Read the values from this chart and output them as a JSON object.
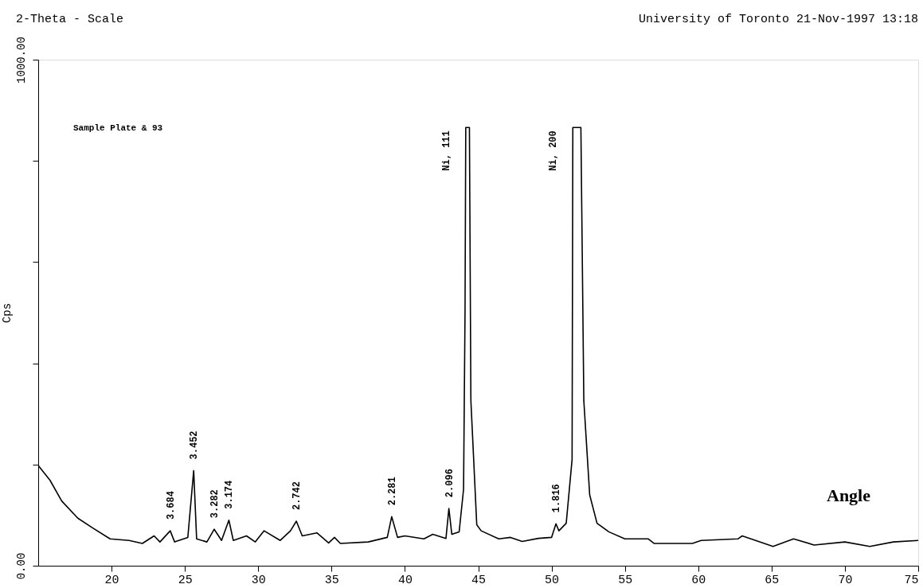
{
  "chart_data": {
    "type": "line",
    "title": "2-Theta - Scale",
    "subtitle": "University of Toronto 21-Nov-1997 13:18",
    "ylabel": "Cps",
    "x": [
      15.0,
      15.8,
      16.6,
      17.7,
      18.7,
      19.9,
      21.2,
      22.1,
      22.9,
      23.3,
      24.0,
      24.3,
      25.2,
      25.6,
      25.8,
      26.5,
      27.0,
      27.5,
      28.0,
      28.3,
      29.2,
      29.8,
      30.4,
      31.5,
      32.2,
      32.6,
      33.0,
      34.0,
      34.8,
      35.2,
      35.6,
      37.5,
      38.8,
      39.1,
      39.5,
      40.0,
      41.3,
      41.9,
      42.8,
      43.0,
      43.2,
      43.7,
      44.0,
      44.1,
      44.15,
      44.4,
      44.5,
      44.9,
      45.2,
      46.4,
      47.2,
      48.0,
      49.1,
      50.0,
      50.3,
      50.5,
      51.0,
      51.4,
      51.45,
      52.0,
      52.2,
      52.6,
      53.1,
      53.9,
      55.0,
      56.6,
      57.0,
      59.6,
      60.2,
      62.7,
      63.0,
      65.1,
      66.5,
      67.9,
      70.0,
      71.7,
      73.3,
      75.0
    ],
    "series": [
      {
        "color": "#000000",
        "values": [
          198,
          169,
          128,
          94,
          75,
          53,
          50,
          44,
          59,
          47,
          69,
          47,
          56,
          188,
          53,
          47,
          72,
          50,
          90,
          50,
          59,
          47,
          69,
          50,
          69,
          88,
          59,
          65,
          45,
          56,
          44,
          47,
          56,
          97,
          56,
          59,
          53,
          62,
          54,
          113,
          62,
          67,
          151,
          500,
          866,
          866,
          326,
          81,
          69,
          53,
          56,
          48,
          54,
          56,
          83,
          69,
          84,
          210,
          866,
          866,
          326,
          140,
          84,
          67,
          53,
          53,
          44,
          44,
          50,
          53,
          59,
          38,
          53,
          41,
          47,
          38,
          47,
          50
        ]
      }
    ],
    "xlim": [
      15,
      75
    ],
    "xticks": [
      20,
      25,
      30,
      35,
      40,
      45,
      50,
      55,
      60,
      65,
      70,
      75
    ],
    "ylim": [
      0,
      1000
    ],
    "yticks": [
      {
        "value": 0,
        "label": "0.00"
      },
      {
        "value": 200,
        "label": null
      },
      {
        "value": 400,
        "label": null
      },
      {
        "value": 600,
        "label": null
      },
      {
        "value": 800,
        "label": null
      },
      {
        "value": 1000,
        "label": "1000.00"
      }
    ],
    "grid": false,
    "marker": "none",
    "line_style": "solid",
    "annotations": [
      "Sample Plate & 93",
      "Angle",
      {
        "text": "3.684",
        "x": 24.0,
        "y": 69
      },
      {
        "text": "3.452",
        "x": 25.6,
        "y": 188
      },
      {
        "text": "3.282",
        "x": 27.0,
        "y": 72
      },
      {
        "text": "3.174",
        "x": 28.0,
        "y": 90
      },
      {
        "text": "2.742",
        "x": 32.6,
        "y": 88
      },
      {
        "text": "2.281",
        "x": 39.1,
        "y": 97
      },
      {
        "text": "2.096",
        "x": 43.0,
        "y": 113
      },
      {
        "text": "Ni, 111",
        "x": 44.15,
        "y": 866
      },
      {
        "text": "Ni, 200",
        "x": 51.45,
        "y": 866
      },
      {
        "text": "1.816",
        "x": 50.3,
        "y": 83
      }
    ]
  }
}
